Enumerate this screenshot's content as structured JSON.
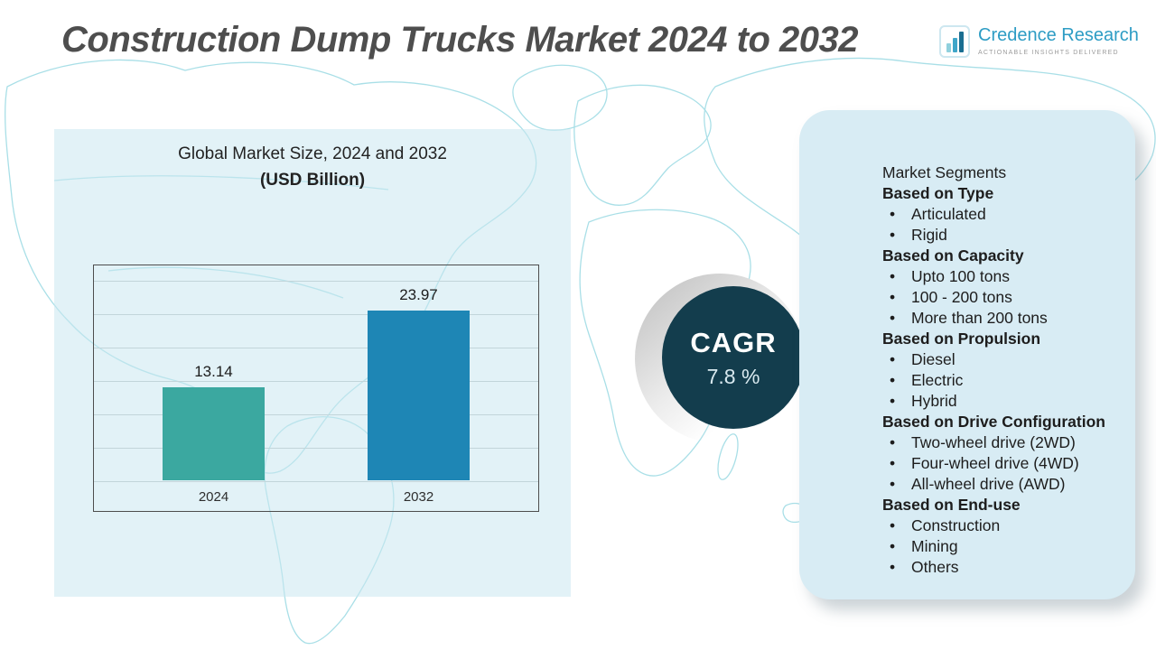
{
  "page": {
    "title": "Construction Dump Trucks Market 2024 to 2032"
  },
  "logo": {
    "name": "Credence Research",
    "tagline": "ACTIONABLE INSIGHTS DELIVERED"
  },
  "chart_data": {
    "type": "bar",
    "title": "Global Market Size, 2024 and 2032",
    "subtitle": "(USD Billion)",
    "categories": [
      "2024",
      "2032"
    ],
    "values": [
      13.14,
      23.97
    ],
    "bar_colors": [
      "#3BA8A0",
      "#1E86B5"
    ],
    "xlabel": "",
    "ylabel": "",
    "ylim": [
      0,
      30
    ],
    "grid": true,
    "legend": "none"
  },
  "cagr": {
    "label": "CAGR",
    "value": "7.8 %"
  },
  "segments": {
    "title": "Market Segments",
    "groups": [
      {
        "heading": "Based on Type",
        "items": [
          "Articulated",
          "Rigid"
        ]
      },
      {
        "heading": "Based on Capacity",
        "items": [
          "Upto 100 tons",
          "100 - 200 tons",
          "More than 200 tons"
        ]
      },
      {
        "heading": "Based on Propulsion",
        "items": [
          "Diesel",
          "Electric",
          "Hybrid"
        ]
      },
      {
        "heading": "Based on Drive Configuration",
        "items": [
          "Two-wheel drive (2WD)",
          "Four-wheel drive (4WD)",
          "All-wheel drive (AWD)"
        ]
      },
      {
        "heading": "Based on End-use",
        "items": [
          "Construction",
          "Mining",
          "Others"
        ]
      }
    ]
  },
  "colors": {
    "teal_bar": "#3BA8A0",
    "blue_bar": "#1E86B5",
    "cagr_circle": "#133d4d",
    "panel_blue": "#d8ecf4",
    "map_line": "#a9dfe7",
    "title_gray": "#4e4e4e",
    "logo_blue": "#2d9cc4"
  }
}
